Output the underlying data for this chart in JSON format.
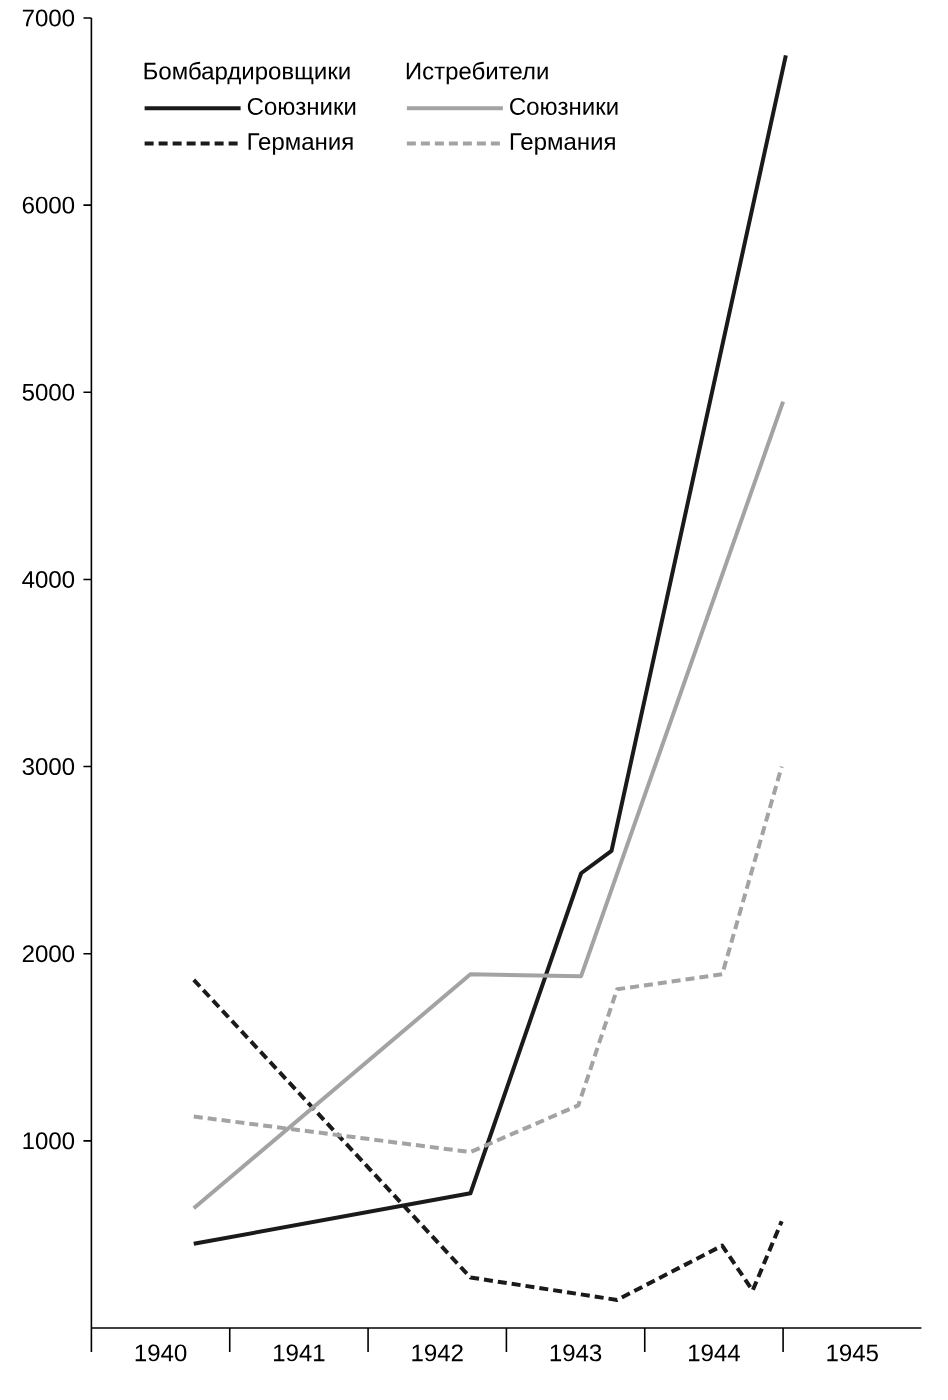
{
  "chart_data": {
    "type": "line",
    "annotations": [
      "Бомбардировщики",
      "Истребители"
    ],
    "xlim": [
      1940,
      1946
    ],
    "xticks": [
      {
        "value": 1940,
        "label": null
      },
      {
        "value": 1941,
        "label": null
      },
      {
        "value": 1942,
        "label": null
      },
      {
        "value": 1943,
        "label": null
      },
      {
        "value": 1944,
        "label": null
      },
      {
        "value": 1945,
        "label": null
      },
      {
        "value": 1940.5,
        "label": "1940"
      },
      {
        "value": 1941.5,
        "label": "1941"
      },
      {
        "value": 1942.5,
        "label": "1942"
      },
      {
        "value": 1943.5,
        "label": "1943"
      },
      {
        "value": 1944.5,
        "label": "1944"
      },
      {
        "value": 1945.5,
        "label": "1945"
      }
    ],
    "ylim": [
      0,
      7000
    ],
    "yticks": [
      1000,
      2000,
      3000,
      4000,
      5000,
      6000,
      7000
    ],
    "legend": "top left",
    "series": [
      {
        "name": "Союзники",
        "color": "#1a1a1a",
        "line_style": "solid",
        "x": [
          1940.74,
          1942.74,
          1943.54,
          1943.76,
          1945.02
        ],
        "values": [
          450,
          720,
          2430,
          2550,
          6800
        ]
      },
      {
        "name": "Германия",
        "color": "#1a1a1a",
        "line_style": "dashed",
        "x": [
          1940.74,
          1942.74,
          1943.8,
          1944.56,
          1944.78,
          1944.99
        ],
        "values": [
          1860,
          270,
          150,
          440,
          200,
          570
        ]
      },
      {
        "name": "Союзники",
        "color": "#a3a3a3",
        "line_style": "solid",
        "x": [
          1940.74,
          1942.74,
          1943.54,
          1945.0
        ],
        "values": [
          640,
          1890,
          1880,
          4950
        ]
      },
      {
        "name": "Германия",
        "color": "#a3a3a3",
        "line_style": "dashed",
        "x": [
          1940.74,
          1942.74,
          1943.52,
          1943.8,
          1944.56,
          1944.99
        ],
        "values": [
          1130,
          940,
          1190,
          1810,
          1890,
          3000
        ]
      }
    ]
  }
}
